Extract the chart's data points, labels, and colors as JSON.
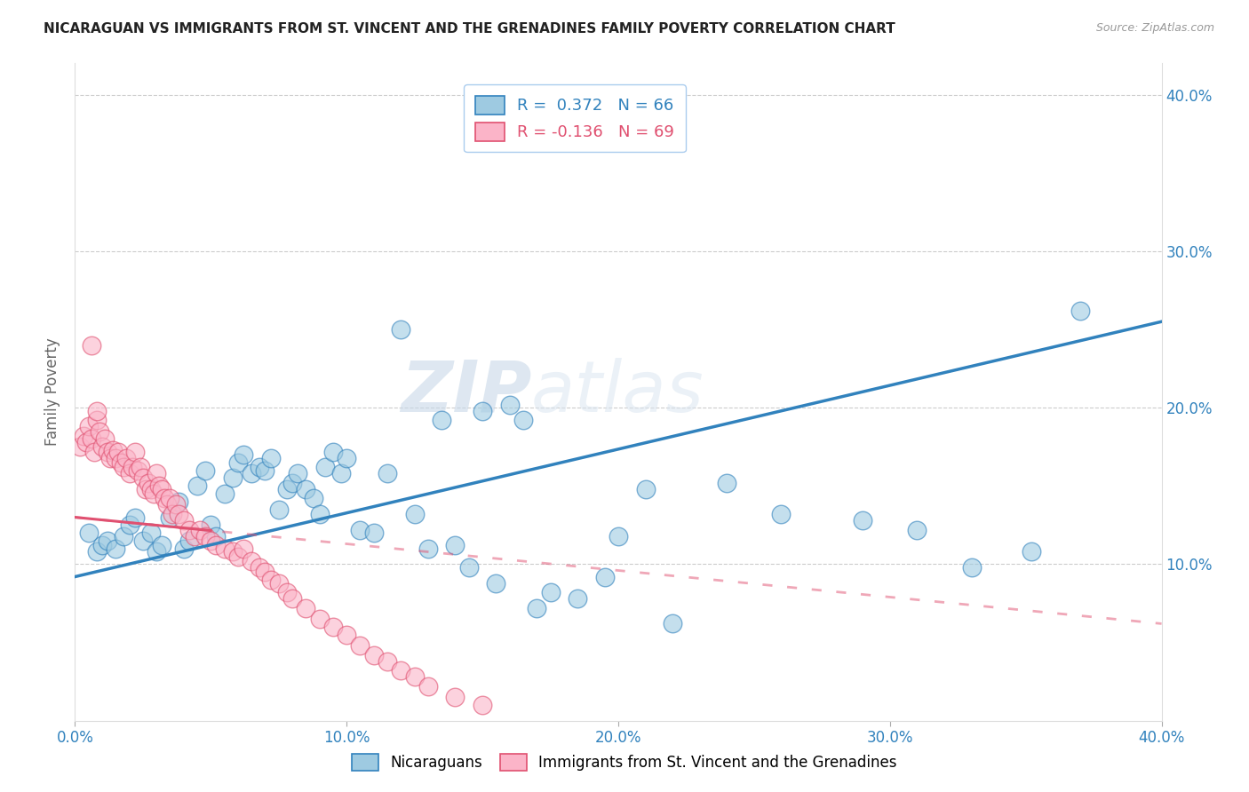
{
  "title": "NICARAGUAN VS IMMIGRANTS FROM ST. VINCENT AND THE GRENADINES FAMILY POVERTY CORRELATION CHART",
  "source": "Source: ZipAtlas.com",
  "ylabel": "Family Poverty",
  "xlim": [
    0.0,
    0.4
  ],
  "ylim": [
    0.0,
    0.42
  ],
  "xticks": [
    0.0,
    0.1,
    0.2,
    0.3,
    0.4
  ],
  "yticks": [
    0.1,
    0.2,
    0.3,
    0.4
  ],
  "xtick_labels": [
    "0.0%",
    "10.0%",
    "20.0%",
    "30.0%",
    "40.0%"
  ],
  "ytick_labels": [
    "10.0%",
    "20.0%",
    "30.0%",
    "40.0%"
  ],
  "legend_label1": "Nicaraguans",
  "legend_label2": "Immigrants from St. Vincent and the Grenadines",
  "R1": 0.372,
  "N1": 66,
  "R2": -0.136,
  "N2": 69,
  "color1": "#9ecae1",
  "color2": "#fbb4c8",
  "line_color1": "#3182bd",
  "line_color2": "#e05070",
  "watermark_zip": "ZIP",
  "watermark_atlas": "atlas",
  "background_color": "#ffffff",
  "blue_x": [
    0.005,
    0.008,
    0.01,
    0.012,
    0.015,
    0.018,
    0.02,
    0.022,
    0.025,
    0.028,
    0.03,
    0.032,
    0.035,
    0.038,
    0.04,
    0.042,
    0.045,
    0.048,
    0.05,
    0.052,
    0.055,
    0.058,
    0.06,
    0.062,
    0.065,
    0.068,
    0.07,
    0.072,
    0.075,
    0.078,
    0.08,
    0.082,
    0.085,
    0.088,
    0.09,
    0.092,
    0.095,
    0.098,
    0.1,
    0.105,
    0.11,
    0.115,
    0.12,
    0.125,
    0.13,
    0.135,
    0.14,
    0.145,
    0.15,
    0.155,
    0.16,
    0.165,
    0.17,
    0.175,
    0.185,
    0.195,
    0.2,
    0.21,
    0.22,
    0.24,
    0.26,
    0.29,
    0.31,
    0.33,
    0.352,
    0.37
  ],
  "blue_y": [
    0.12,
    0.108,
    0.112,
    0.115,
    0.11,
    0.118,
    0.125,
    0.13,
    0.115,
    0.12,
    0.108,
    0.112,
    0.13,
    0.14,
    0.11,
    0.115,
    0.15,
    0.16,
    0.125,
    0.118,
    0.145,
    0.155,
    0.165,
    0.17,
    0.158,
    0.162,
    0.16,
    0.168,
    0.135,
    0.148,
    0.152,
    0.158,
    0.148,
    0.142,
    0.132,
    0.162,
    0.172,
    0.158,
    0.168,
    0.122,
    0.12,
    0.158,
    0.25,
    0.132,
    0.11,
    0.192,
    0.112,
    0.098,
    0.198,
    0.088,
    0.202,
    0.192,
    0.072,
    0.082,
    0.078,
    0.092,
    0.118,
    0.148,
    0.062,
    0.152,
    0.132,
    0.128,
    0.122,
    0.098,
    0.108,
    0.262
  ],
  "pink_x": [
    0.002,
    0.003,
    0.004,
    0.005,
    0.006,
    0.007,
    0.008,
    0.009,
    0.01,
    0.011,
    0.012,
    0.013,
    0.014,
    0.015,
    0.016,
    0.017,
    0.018,
    0.019,
    0.02,
    0.021,
    0.022,
    0.023,
    0.024,
    0.025,
    0.026,
    0.027,
    0.028,
    0.029,
    0.03,
    0.031,
    0.032,
    0.033,
    0.034,
    0.035,
    0.036,
    0.037,
    0.038,
    0.04,
    0.042,
    0.044,
    0.046,
    0.048,
    0.05,
    0.052,
    0.055,
    0.058,
    0.06,
    0.062,
    0.065,
    0.068,
    0.07,
    0.072,
    0.075,
    0.078,
    0.08,
    0.085,
    0.09,
    0.095,
    0.1,
    0.105,
    0.11,
    0.115,
    0.12,
    0.125,
    0.13,
    0.14,
    0.15,
    0.006,
    0.008
  ],
  "pink_y": [
    0.175,
    0.182,
    0.178,
    0.188,
    0.18,
    0.172,
    0.192,
    0.185,
    0.175,
    0.18,
    0.172,
    0.168,
    0.173,
    0.168,
    0.172,
    0.165,
    0.162,
    0.168,
    0.158,
    0.162,
    0.172,
    0.16,
    0.162,
    0.155,
    0.148,
    0.152,
    0.148,
    0.145,
    0.158,
    0.15,
    0.148,
    0.142,
    0.138,
    0.142,
    0.132,
    0.138,
    0.132,
    0.128,
    0.122,
    0.118,
    0.122,
    0.118,
    0.115,
    0.112,
    0.11,
    0.108,
    0.105,
    0.11,
    0.102,
    0.098,
    0.095,
    0.09,
    0.088,
    0.082,
    0.078,
    0.072,
    0.065,
    0.06,
    0.055,
    0.048,
    0.042,
    0.038,
    0.032,
    0.028,
    0.022,
    0.015,
    0.01,
    0.24,
    0.198
  ],
  "line1_x0": 0.0,
  "line1_y0": 0.092,
  "line1_x1": 0.4,
  "line1_y1": 0.255,
  "line2_x0": 0.0,
  "line2_y0": 0.13,
  "line2_x1": 0.4,
  "line2_y1": 0.062
}
